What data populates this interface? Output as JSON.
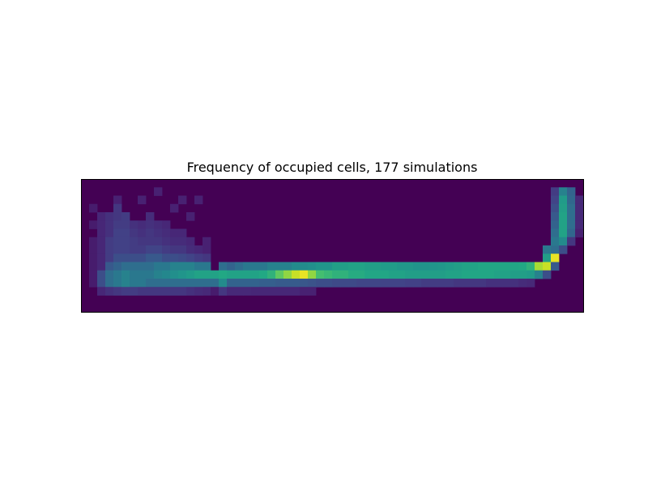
{
  "chart_data": {
    "type": "heatmap",
    "title": "Frequency of occupied cells, 177 simulations",
    "xlabel": "",
    "ylabel": "",
    "grid": false,
    "axis_ticks": false,
    "colormap": "viridis",
    "columns": 62,
    "rows": 16,
    "background_value": 0,
    "max_value": 1,
    "cells": [
      [
        1,
        3,
        0.1
      ],
      [
        1,
        5,
        0.1
      ],
      [
        1,
        7,
        0.1
      ],
      [
        1,
        8,
        0.1
      ],
      [
        1,
        9,
        0.1
      ],
      [
        1,
        10,
        0.1
      ],
      [
        1,
        11,
        0.1
      ],
      [
        1,
        12,
        0.1
      ],
      [
        2,
        4,
        0.14
      ],
      [
        2,
        5,
        0.14
      ],
      [
        2,
        6,
        0.14
      ],
      [
        2,
        7,
        0.14
      ],
      [
        2,
        8,
        0.14
      ],
      [
        2,
        9,
        0.14
      ],
      [
        2,
        10,
        0.14
      ],
      [
        2,
        11,
        0.3
      ],
      [
        2,
        12,
        0.3
      ],
      [
        2,
        13,
        0.14
      ],
      [
        3,
        4,
        0.18
      ],
      [
        3,
        5,
        0.18
      ],
      [
        3,
        6,
        0.18
      ],
      [
        3,
        7,
        0.22
      ],
      [
        3,
        8,
        0.22
      ],
      [
        3,
        9,
        0.22
      ],
      [
        3,
        10,
        0.35
      ],
      [
        3,
        11,
        0.45
      ],
      [
        3,
        12,
        0.45
      ],
      [
        3,
        13,
        0.18
      ],
      [
        4,
        2,
        0.12
      ],
      [
        4,
        3,
        0.2
      ],
      [
        4,
        4,
        0.2
      ],
      [
        4,
        5,
        0.22
      ],
      [
        4,
        6,
        0.24
      ],
      [
        4,
        7,
        0.24
      ],
      [
        4,
        8,
        0.24
      ],
      [
        4,
        9,
        0.3
      ],
      [
        4,
        10,
        0.4
      ],
      [
        4,
        11,
        0.5
      ],
      [
        4,
        12,
        0.5
      ],
      [
        4,
        13,
        0.2
      ],
      [
        5,
        4,
        0.22
      ],
      [
        5,
        5,
        0.22
      ],
      [
        5,
        6,
        0.24
      ],
      [
        5,
        7,
        0.24
      ],
      [
        5,
        8,
        0.24
      ],
      [
        5,
        9,
        0.3
      ],
      [
        5,
        10,
        0.45
      ],
      [
        5,
        11,
        0.55
      ],
      [
        5,
        12,
        0.55
      ],
      [
        5,
        13,
        0.22
      ],
      [
        6,
        5,
        0.18
      ],
      [
        6,
        6,
        0.2
      ],
      [
        6,
        7,
        0.22
      ],
      [
        6,
        8,
        0.22
      ],
      [
        6,
        9,
        0.3
      ],
      [
        6,
        10,
        0.45
      ],
      [
        6,
        11,
        0.5
      ],
      [
        6,
        12,
        0.5
      ],
      [
        6,
        13,
        0.22
      ],
      [
        7,
        2,
        0.12
      ],
      [
        7,
        5,
        0.16
      ],
      [
        7,
        6,
        0.18
      ],
      [
        7,
        7,
        0.2
      ],
      [
        7,
        8,
        0.22
      ],
      [
        7,
        9,
        0.3
      ],
      [
        7,
        10,
        0.45
      ],
      [
        7,
        11,
        0.5
      ],
      [
        7,
        12,
        0.5
      ],
      [
        7,
        13,
        0.2
      ],
      [
        8,
        4,
        0.16
      ],
      [
        8,
        5,
        0.18
      ],
      [
        8,
        6,
        0.2
      ],
      [
        8,
        7,
        0.2
      ],
      [
        8,
        8,
        0.25
      ],
      [
        8,
        9,
        0.35
      ],
      [
        8,
        10,
        0.45
      ],
      [
        8,
        11,
        0.5
      ],
      [
        8,
        12,
        0.45
      ],
      [
        8,
        13,
        0.2
      ],
      [
        9,
        1,
        0.12
      ],
      [
        9,
        5,
        0.16
      ],
      [
        9,
        6,
        0.18
      ],
      [
        9,
        7,
        0.2
      ],
      [
        9,
        8,
        0.25
      ],
      [
        9,
        9,
        0.35
      ],
      [
        9,
        10,
        0.5
      ],
      [
        9,
        11,
        0.55
      ],
      [
        9,
        12,
        0.45
      ],
      [
        9,
        13,
        0.2
      ],
      [
        10,
        5,
        0.14
      ],
      [
        10,
        6,
        0.16
      ],
      [
        10,
        7,
        0.18
      ],
      [
        10,
        8,
        0.22
      ],
      [
        10,
        9,
        0.3
      ],
      [
        10,
        10,
        0.5
      ],
      [
        10,
        11,
        0.58
      ],
      [
        10,
        12,
        0.45
      ],
      [
        10,
        13,
        0.2
      ],
      [
        11,
        3,
        0.12
      ],
      [
        11,
        6,
        0.14
      ],
      [
        11,
        7,
        0.16
      ],
      [
        11,
        8,
        0.2
      ],
      [
        11,
        9,
        0.3
      ],
      [
        11,
        10,
        0.55
      ],
      [
        11,
        11,
        0.62
      ],
      [
        11,
        12,
        0.45
      ],
      [
        11,
        13,
        0.2
      ],
      [
        12,
        2,
        0.12
      ],
      [
        12,
        6,
        0.14
      ],
      [
        12,
        7,
        0.16
      ],
      [
        12,
        8,
        0.2
      ],
      [
        12,
        9,
        0.28
      ],
      [
        12,
        10,
        0.55
      ],
      [
        12,
        11,
        0.65
      ],
      [
        12,
        12,
        0.45
      ],
      [
        12,
        13,
        0.2
      ],
      [
        13,
        4,
        0.12
      ],
      [
        13,
        7,
        0.14
      ],
      [
        13,
        8,
        0.16
      ],
      [
        13,
        9,
        0.25
      ],
      [
        13,
        10,
        0.55
      ],
      [
        13,
        11,
        0.68
      ],
      [
        13,
        12,
        0.45
      ],
      [
        13,
        13,
        0.18
      ],
      [
        14,
        2,
        0.12
      ],
      [
        14,
        8,
        0.14
      ],
      [
        14,
        9,
        0.22
      ],
      [
        14,
        10,
        0.5
      ],
      [
        14,
        11,
        0.72
      ],
      [
        14,
        12,
        0.45
      ],
      [
        14,
        13,
        0.16
      ],
      [
        15,
        7,
        0.12
      ],
      [
        15,
        8,
        0.12
      ],
      [
        15,
        9,
        0.2
      ],
      [
        15,
        10,
        0.5
      ],
      [
        15,
        11,
        0.72
      ],
      [
        15,
        12,
        0.45
      ],
      [
        15,
        13,
        0.15
      ],
      [
        16,
        11,
        0.72
      ],
      [
        16,
        12,
        0.45
      ],
      [
        16,
        13,
        0.1
      ],
      [
        17,
        10,
        0.45
      ],
      [
        17,
        11,
        0.75
      ],
      [
        17,
        12,
        0.6
      ],
      [
        17,
        13,
        0.2
      ],
      [
        18,
        10,
        0.4
      ],
      [
        18,
        11,
        0.72
      ],
      [
        18,
        12,
        0.4
      ],
      [
        18,
        13,
        0.15
      ],
      [
        19,
        10,
        0.45
      ],
      [
        19,
        11,
        0.72
      ],
      [
        19,
        12,
        0.4
      ],
      [
        19,
        13,
        0.15
      ],
      [
        20,
        10,
        0.5
      ],
      [
        20,
        11,
        0.72
      ],
      [
        20,
        12,
        0.4
      ],
      [
        20,
        13,
        0.15
      ],
      [
        21,
        10,
        0.5
      ],
      [
        21,
        11,
        0.72
      ],
      [
        21,
        12,
        0.4
      ],
      [
        21,
        13,
        0.14
      ],
      [
        22,
        10,
        0.5
      ],
      [
        22,
        11,
        0.75
      ],
      [
        22,
        12,
        0.38
      ],
      [
        22,
        13,
        0.14
      ],
      [
        23,
        10,
        0.55
      ],
      [
        23,
        11,
        0.78
      ],
      [
        23,
        12,
        0.38
      ],
      [
        23,
        13,
        0.14
      ],
      [
        24,
        10,
        0.55
      ],
      [
        24,
        11,
        0.85
      ],
      [
        24,
        12,
        0.36
      ],
      [
        24,
        13,
        0.14
      ],
      [
        25,
        10,
        0.55
      ],
      [
        25,
        11,
        0.9
      ],
      [
        25,
        12,
        0.36
      ],
      [
        25,
        13,
        0.14
      ],
      [
        26,
        10,
        0.6
      ],
      [
        26,
        11,
        0.95
      ],
      [
        26,
        12,
        0.36
      ],
      [
        26,
        13,
        0.14
      ],
      [
        27,
        10,
        0.6
      ],
      [
        27,
        11,
        0.98
      ],
      [
        27,
        12,
        0.34
      ],
      [
        27,
        13,
        0.12
      ],
      [
        28,
        10,
        0.62
      ],
      [
        28,
        11,
        0.9
      ],
      [
        28,
        12,
        0.32
      ],
      [
        28,
        13,
        0.12
      ],
      [
        29,
        10,
        0.65
      ],
      [
        29,
        11,
        0.82
      ],
      [
        29,
        12,
        0.3
      ],
      [
        30,
        10,
        0.65
      ],
      [
        30,
        11,
        0.8
      ],
      [
        30,
        12,
        0.3
      ],
      [
        31,
        10,
        0.7
      ],
      [
        31,
        11,
        0.78
      ],
      [
        31,
        12,
        0.28
      ],
      [
        32,
        10,
        0.7
      ],
      [
        32,
        11,
        0.78
      ],
      [
        32,
        12,
        0.28
      ],
      [
        33,
        10,
        0.72
      ],
      [
        33,
        11,
        0.76
      ],
      [
        33,
        12,
        0.28
      ],
      [
        34,
        10,
        0.72
      ],
      [
        34,
        11,
        0.76
      ],
      [
        34,
        12,
        0.26
      ],
      [
        35,
        10,
        0.7
      ],
      [
        35,
        11,
        0.74
      ],
      [
        35,
        12,
        0.26
      ],
      [
        36,
        10,
        0.7
      ],
      [
        36,
        11,
        0.74
      ],
      [
        36,
        12,
        0.26
      ],
      [
        37,
        10,
        0.68
      ],
      [
        37,
        11,
        0.74
      ],
      [
        37,
        12,
        0.25
      ],
      [
        38,
        10,
        0.68
      ],
      [
        38,
        11,
        0.72
      ],
      [
        38,
        12,
        0.25
      ],
      [
        39,
        10,
        0.66
      ],
      [
        39,
        11,
        0.72
      ],
      [
        39,
        12,
        0.25
      ],
      [
        40,
        10,
        0.66
      ],
      [
        40,
        11,
        0.7
      ],
      [
        40,
        12,
        0.24
      ],
      [
        41,
        10,
        0.64
      ],
      [
        41,
        11,
        0.7
      ],
      [
        41,
        12,
        0.24
      ],
      [
        42,
        10,
        0.64
      ],
      [
        42,
        11,
        0.7
      ],
      [
        42,
        12,
        0.22
      ],
      [
        43,
        10,
        0.65
      ],
      [
        43,
        11,
        0.7
      ],
      [
        43,
        12,
        0.22
      ],
      [
        44,
        10,
        0.66
      ],
      [
        44,
        11,
        0.7
      ],
      [
        44,
        12,
        0.22
      ],
      [
        45,
        10,
        0.68
      ],
      [
        45,
        11,
        0.72
      ],
      [
        45,
        12,
        0.22
      ],
      [
        46,
        10,
        0.7
      ],
      [
        46,
        11,
        0.72
      ],
      [
        46,
        12,
        0.2
      ],
      [
        47,
        10,
        0.72
      ],
      [
        47,
        11,
        0.74
      ],
      [
        47,
        12,
        0.2
      ],
      [
        48,
        10,
        0.72
      ],
      [
        48,
        11,
        0.74
      ],
      [
        48,
        12,
        0.2
      ],
      [
        49,
        10,
        0.74
      ],
      [
        49,
        11,
        0.74
      ],
      [
        49,
        12,
        0.2
      ],
      [
        50,
        10,
        0.74
      ],
      [
        50,
        11,
        0.74
      ],
      [
        50,
        12,
        0.18
      ],
      [
        51,
        10,
        0.74
      ],
      [
        51,
        11,
        0.72
      ],
      [
        51,
        12,
        0.18
      ],
      [
        52,
        10,
        0.74
      ],
      [
        52,
        11,
        0.72
      ],
      [
        52,
        12,
        0.18
      ],
      [
        53,
        10,
        0.74
      ],
      [
        53,
        11,
        0.7
      ],
      [
        53,
        12,
        0.18
      ],
      [
        54,
        10,
        0.75
      ],
      [
        54,
        11,
        0.7
      ],
      [
        54,
        12,
        0.16
      ],
      [
        55,
        10,
        0.78
      ],
      [
        55,
        11,
        0.68
      ],
      [
        55,
        12,
        0.15
      ],
      [
        56,
        10,
        0.92
      ],
      [
        56,
        11,
        0.55
      ],
      [
        57,
        8,
        0.5
      ],
      [
        57,
        9,
        0.7
      ],
      [
        57,
        10,
        0.95
      ],
      [
        57,
        11,
        0.3
      ],
      [
        58,
        8,
        0.45
      ],
      [
        58,
        9,
        0.98
      ],
      [
        58,
        10,
        0.35
      ],
      [
        58,
        1,
        0.22
      ],
      [
        58,
        2,
        0.25
      ],
      [
        58,
        3,
        0.3
      ],
      [
        58,
        4,
        0.35
      ],
      [
        58,
        5,
        0.4
      ],
      [
        58,
        6,
        0.45
      ],
      [
        58,
        7,
        0.5
      ],
      [
        59,
        1,
        0.55
      ],
      [
        59,
        2,
        0.68
      ],
      [
        59,
        3,
        0.7
      ],
      [
        59,
        4,
        0.72
      ],
      [
        59,
        5,
        0.72
      ],
      [
        59,
        6,
        0.72
      ],
      [
        59,
        7,
        0.6
      ],
      [
        59,
        8,
        0.3
      ],
      [
        60,
        1,
        0.4
      ],
      [
        60,
        2,
        0.42
      ],
      [
        60,
        3,
        0.45
      ],
      [
        60,
        4,
        0.45
      ],
      [
        60,
        5,
        0.45
      ],
      [
        60,
        6,
        0.42
      ],
      [
        60,
        7,
        0.2
      ],
      [
        61,
        2,
        0.15
      ],
      [
        61,
        3,
        0.15
      ],
      [
        61,
        4,
        0.15
      ],
      [
        61,
        5,
        0.15
      ],
      [
        61,
        6,
        0.12
      ]
    ]
  }
}
